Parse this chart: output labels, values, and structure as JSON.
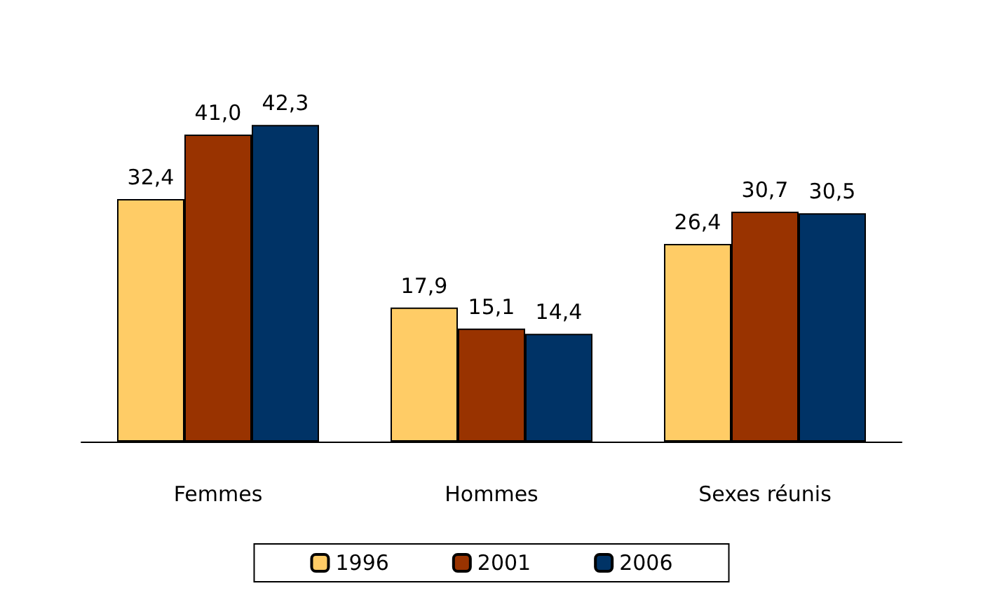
{
  "chart_data": {
    "type": "bar",
    "categories": [
      "Femmes",
      "Hommes",
      "Sexes réunis"
    ],
    "series": [
      {
        "name": "1996",
        "color": "#ffcc66",
        "values": [
          32.4,
          17.9,
          26.4
        ],
        "value_labels": [
          "32,4",
          "17,9",
          "26,4"
        ]
      },
      {
        "name": "2001",
        "color": "#993300",
        "values": [
          41.0,
          15.1,
          30.7
        ],
        "value_labels": [
          "41,0",
          "15,1",
          "30,7"
        ]
      },
      {
        "name": "2006",
        "color": "#003366",
        "values": [
          42.3,
          14.4,
          30.5
        ],
        "value_labels": [
          "42,3",
          "14,4",
          "30,5"
        ]
      }
    ],
    "legend": "bottom"
  }
}
